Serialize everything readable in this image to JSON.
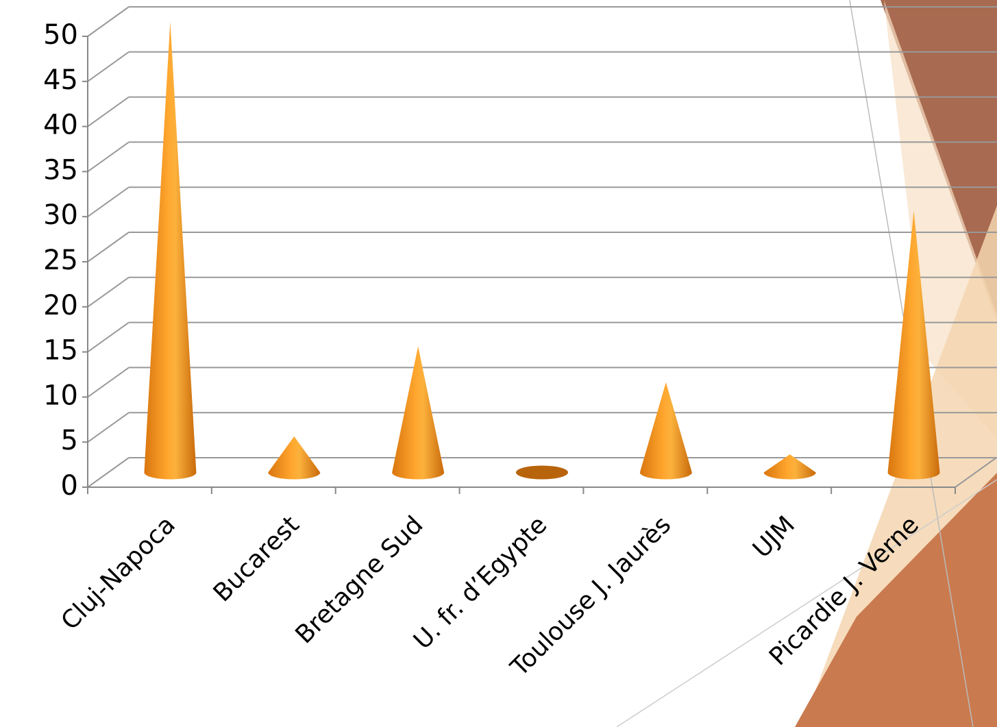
{
  "chart_data": {
    "type": "cone",
    "categories": [
      "Cluj-Napoca",
      "Bucarest",
      "Bretagne Sud",
      "U. fr. d’Egypte",
      "Toulouse J. Jaurès",
      "UJM",
      "Picardie J. Verne"
    ],
    "values": [
      50,
      4,
      14,
      0,
      10,
      2,
      29
    ],
    "color": "#f7941d",
    "ylim": [
      0,
      50
    ],
    "yticks": [
      0,
      5,
      10,
      15,
      20,
      25,
      30,
      35,
      40,
      45,
      50
    ],
    "grid": true
  }
}
